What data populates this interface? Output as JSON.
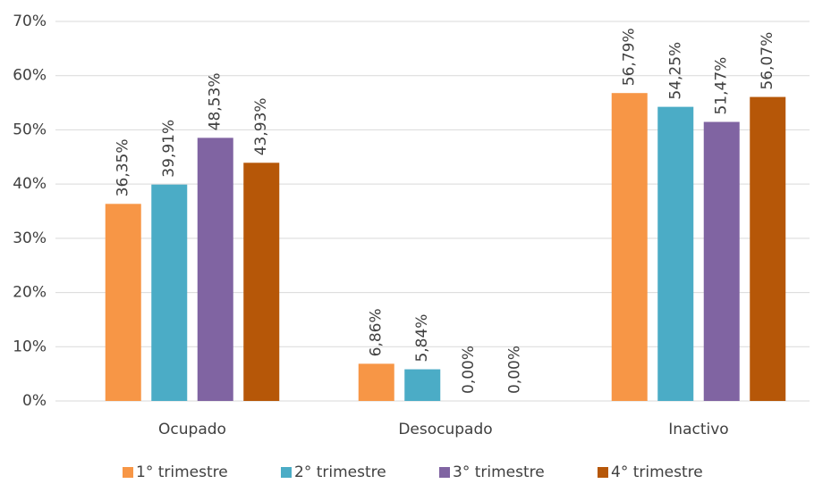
{
  "chart_data": {
    "type": "bar",
    "categories": [
      "Ocupado",
      "Desocupado",
      "Inactivo"
    ],
    "series": [
      {
        "name": "1° trimestre",
        "color": "#f79646",
        "values": [
          36.35,
          6.86,
          56.79
        ],
        "value_labels": [
          "36,35%",
          "6,86%",
          "56,79%"
        ]
      },
      {
        "name": "2° trimestre",
        "color": "#4bacc6",
        "values": [
          39.91,
          5.84,
          54.25
        ],
        "value_labels": [
          "39,91%",
          "5,84%",
          "54,25%"
        ]
      },
      {
        "name": "3° trimestre",
        "color": "#8064a2",
        "values": [
          48.53,
          0,
          51.47
        ],
        "value_labels": [
          "48,53%",
          "0,00%",
          "51,47%"
        ]
      },
      {
        "name": "4° trimestre",
        "color": "#b65708",
        "values": [
          43.93,
          0,
          56.07
        ],
        "value_labels": [
          "43,93%",
          "0,00%",
          "56,07%"
        ]
      }
    ],
    "ylim": [
      0,
      70
    ],
    "yticks": [
      {
        "value": 0,
        "label": "0%"
      },
      {
        "value": 10,
        "label": "10%"
      },
      {
        "value": 20,
        "label": "20%"
      },
      {
        "value": 30,
        "label": "30%"
      },
      {
        "value": 40,
        "label": "40%"
      },
      {
        "value": 50,
        "label": "50%"
      },
      {
        "value": 60,
        "label": "60%"
      },
      {
        "value": 70,
        "label": "70%"
      }
    ],
    "grid": true,
    "legend": "bottom"
  }
}
